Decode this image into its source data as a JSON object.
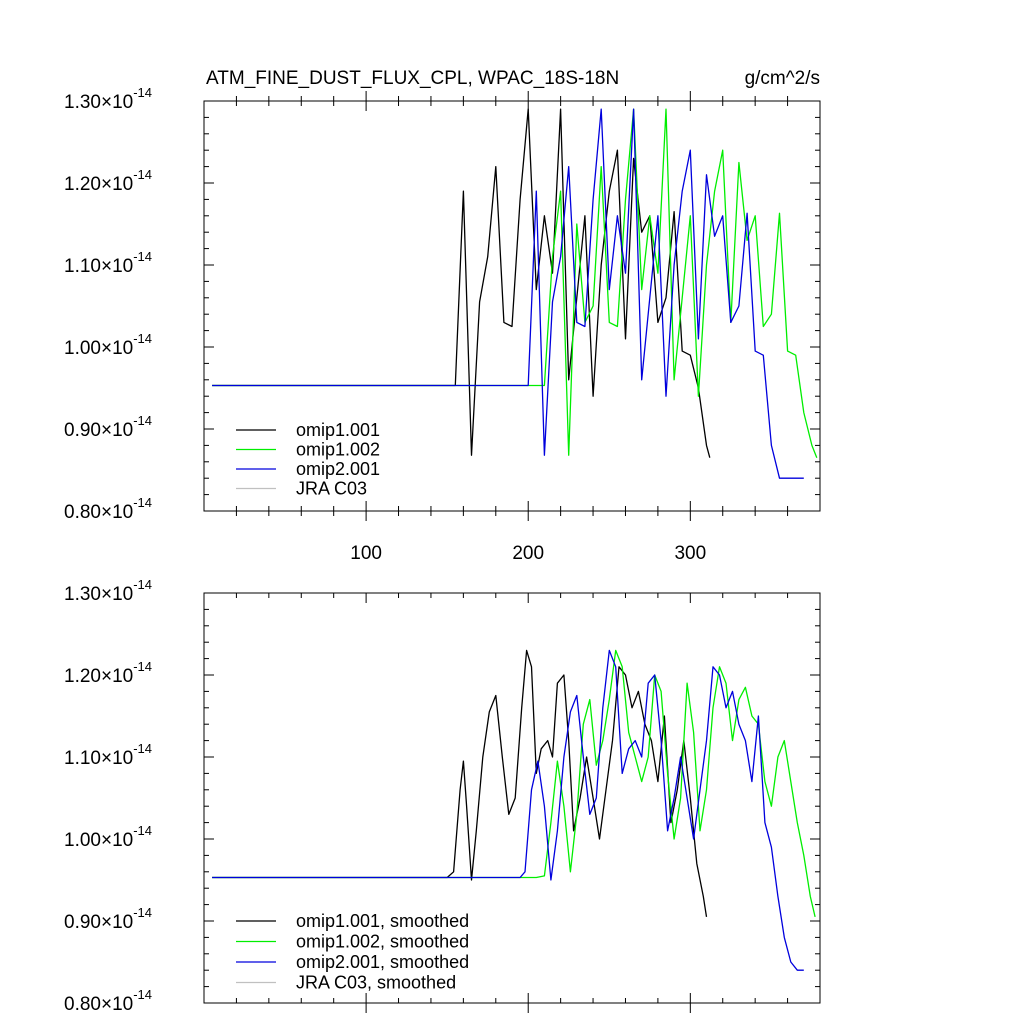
{
  "chart_data": [
    {
      "type": "line",
      "title": "ATM_FINE_DUST_FLUX_CPL, WPAC_18S-18N",
      "units": "g/cm^2/s",
      "xlim": [
        0,
        380
      ],
      "ylim": [
        0.8,
        1.3
      ],
      "ylim_exponent": -14,
      "yticks": [
        {
          "mantissa": "1.30",
          "times": "×",
          "base": "10",
          "exponent": "-14"
        },
        {
          "mantissa": "1.20",
          "times": "×",
          "base": "10",
          "exponent": "-14"
        },
        {
          "mantissa": "1.10",
          "times": "×",
          "base": "10",
          "exponent": "-14"
        },
        {
          "mantissa": "1.00",
          "times": "×",
          "base": "10",
          "exponent": "-14"
        },
        {
          "mantissa": "0.90",
          "times": "×",
          "base": "10",
          "exponent": "-14"
        },
        {
          "mantissa": "0.80",
          "times": "×",
          "base": "10",
          "exponent": "-14"
        }
      ],
      "xticks": [
        "100",
        "200",
        "300"
      ],
      "series": [
        {
          "name": "omip1.001",
          "color": "#000000",
          "x": [
            5,
            155,
            160,
            165,
            170,
            175,
            180,
            185,
            190,
            195,
            200,
            205,
            210,
            215,
            220,
            225,
            230,
            235,
            240,
            245,
            250,
            255,
            260,
            265,
            270,
            275,
            280,
            285,
            290,
            295,
            300,
            305,
            310,
            312
          ],
          "y": [
            0.953,
            0.953,
            1.19,
            0.868,
            1.055,
            1.11,
            1.22,
            1.03,
            1.025,
            1.18,
            1.29,
            1.07,
            1.16,
            1.09,
            1.29,
            0.96,
            1.06,
            1.16,
            0.94,
            1.1,
            1.19,
            1.24,
            1.01,
            1.23,
            1.14,
            1.16,
            1.03,
            1.06,
            1.165,
            0.995,
            0.99,
            0.95,
            0.88,
            0.865
          ]
        },
        {
          "name": "omip1.002",
          "color": "#00ee00",
          "x": [
            5,
            210,
            215,
            220,
            225,
            230,
            235,
            240,
            245,
            250,
            255,
            260,
            265,
            270,
            275,
            280,
            285,
            290,
            295,
            300,
            305,
            310,
            315,
            320,
            325,
            330,
            335,
            340,
            345,
            350,
            355,
            360,
            365,
            370,
            375,
            378
          ],
          "y": [
            0.953,
            0.953,
            1.11,
            1.19,
            0.868,
            1.15,
            1.03,
            1.05,
            1.22,
            1.03,
            1.025,
            1.18,
            1.29,
            1.07,
            1.16,
            1.09,
            1.29,
            0.96,
            1.06,
            1.16,
            0.94,
            1.1,
            1.19,
            1.24,
            1.03,
            1.225,
            1.13,
            1.16,
            1.025,
            1.04,
            1.163,
            0.995,
            0.99,
            0.92,
            0.88,
            0.865
          ]
        },
        {
          "name": "omip2.001",
          "color": "#0000dd",
          "x": [
            5,
            200,
            205,
            210,
            215,
            220,
            225,
            230,
            235,
            240,
            245,
            250,
            255,
            260,
            265,
            270,
            275,
            280,
            285,
            290,
            295,
            300,
            305,
            310,
            315,
            320,
            325,
            330,
            335,
            340,
            345,
            350,
            355,
            360,
            365,
            370
          ],
          "y": [
            0.953,
            0.953,
            1.19,
            0.868,
            1.055,
            1.11,
            1.22,
            1.03,
            1.025,
            1.18,
            1.29,
            1.07,
            1.16,
            1.09,
            1.29,
            0.96,
            1.06,
            1.16,
            0.94,
            1.1,
            1.19,
            1.24,
            1.01,
            1.21,
            1.135,
            1.16,
            1.03,
            1.05,
            1.163,
            0.995,
            0.99,
            0.88,
            0.84,
            0.84,
            0.84,
            0.84
          ]
        },
        {
          "name": "JRA C03",
          "color": "#c0c0c0",
          "x": [],
          "y": []
        }
      ]
    },
    {
      "type": "line",
      "title": "",
      "xlim": [
        0,
        380
      ],
      "ylim": [
        0.8,
        1.3
      ],
      "ylim_exponent": -14,
      "yticks": [
        {
          "mantissa": "1.30",
          "times": "×",
          "base": "10",
          "exponent": "-14"
        },
        {
          "mantissa": "1.20",
          "times": "×",
          "base": "10",
          "exponent": "-14"
        },
        {
          "mantissa": "1.10",
          "times": "×",
          "base": "10",
          "exponent": "-14"
        },
        {
          "mantissa": "1.00",
          "times": "×",
          "base": "10",
          "exponent": "-14"
        },
        {
          "mantissa": "0.90",
          "times": "×",
          "base": "10",
          "exponent": "-14"
        },
        {
          "mantissa": "0.80",
          "times": "×",
          "base": "10",
          "exponent": "-14"
        }
      ],
      "xticks": [],
      "series": [
        {
          "name": "omip1.001, smoothed",
          "color": "#000000",
          "x": [
            5,
            150,
            154,
            158,
            160,
            162,
            165,
            168,
            172,
            176,
            180,
            184,
            188,
            192,
            196,
            199,
            202,
            205,
            208,
            212,
            215,
            218,
            222,
            225,
            228,
            232,
            236,
            240,
            244,
            248,
            252,
            256,
            260,
            264,
            268,
            272,
            276,
            280,
            284,
            288,
            292,
            296,
            300,
            304,
            308,
            310
          ],
          "y": [
            0.953,
            0.953,
            0.96,
            1.06,
            1.095,
            1.04,
            0.95,
            1.01,
            1.1,
            1.155,
            1.175,
            1.1,
            1.03,
            1.05,
            1.16,
            1.23,
            1.21,
            1.08,
            1.11,
            1.12,
            1.1,
            1.19,
            1.2,
            1.12,
            1.01,
            1.05,
            1.1,
            1.05,
            1.0,
            1.06,
            1.12,
            1.21,
            1.2,
            1.16,
            1.18,
            1.14,
            1.12,
            1.07,
            1.15,
            1.02,
            1.06,
            1.12,
            1.05,
            0.97,
            0.93,
            0.905
          ]
        },
        {
          "name": "omip1.002, smoothed",
          "color": "#00ee00",
          "x": [
            5,
            205,
            210,
            214,
            218,
            222,
            226,
            230,
            234,
            238,
            242,
            246,
            250,
            254,
            258,
            262,
            266,
            270,
            274,
            278,
            282,
            286,
            290,
            294,
            298,
            302,
            306,
            310,
            314,
            318,
            322,
            326,
            330,
            334,
            338,
            342,
            346,
            350,
            354,
            358,
            362,
            366,
            370,
            374,
            377
          ],
          "y": [
            0.953,
            0.953,
            0.955,
            1.02,
            1.095,
            1.04,
            0.96,
            1.03,
            1.14,
            1.17,
            1.09,
            1.12,
            1.17,
            1.23,
            1.21,
            1.13,
            1.1,
            1.07,
            1.1,
            1.2,
            1.18,
            1.08,
            1.0,
            1.05,
            1.19,
            1.13,
            1.01,
            1.06,
            1.16,
            1.21,
            1.19,
            1.12,
            1.17,
            1.185,
            1.15,
            1.14,
            1.07,
            1.04,
            1.1,
            1.12,
            1.07,
            1.02,
            0.98,
            0.93,
            0.905
          ]
        },
        {
          "name": "omip2.001, smoothed",
          "color": "#0000dd",
          "x": [
            5,
            195,
            198,
            202,
            206,
            210,
            214,
            218,
            222,
            226,
            230,
            234,
            238,
            242,
            246,
            250,
            254,
            258,
            262,
            266,
            270,
            274,
            278,
            282,
            286,
            290,
            294,
            298,
            302,
            306,
            310,
            314,
            318,
            322,
            326,
            330,
            334,
            338,
            342,
            346,
            350,
            354,
            358,
            362,
            366,
            370
          ],
          "y": [
            0.953,
            0.953,
            0.96,
            1.06,
            1.095,
            1.04,
            0.95,
            1.01,
            1.1,
            1.155,
            1.175,
            1.1,
            1.03,
            1.05,
            1.16,
            1.23,
            1.21,
            1.08,
            1.11,
            1.12,
            1.1,
            1.19,
            1.2,
            1.12,
            1.01,
            1.05,
            1.1,
            1.05,
            1.0,
            1.06,
            1.12,
            1.21,
            1.2,
            1.16,
            1.18,
            1.14,
            1.12,
            1.07,
            1.15,
            1.02,
            0.99,
            0.93,
            0.88,
            0.85,
            0.84,
            0.84
          ]
        },
        {
          "name": "JRA C03, smoothed",
          "color": "#c0c0c0",
          "x": [],
          "y": []
        }
      ]
    }
  ]
}
